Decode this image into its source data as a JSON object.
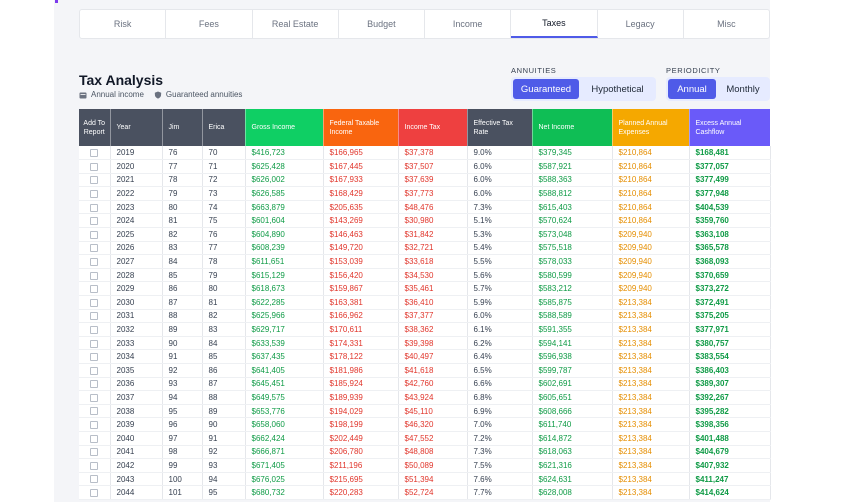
{
  "tabs": [
    {
      "label": "Risk",
      "active": false
    },
    {
      "label": "Fees",
      "active": false
    },
    {
      "label": "Real Estate",
      "active": false
    },
    {
      "label": "Budget",
      "active": false
    },
    {
      "label": "Income",
      "active": false
    },
    {
      "label": "Taxes",
      "active": true
    },
    {
      "label": "Legacy",
      "active": false
    },
    {
      "label": "Misc",
      "active": false
    }
  ],
  "header": {
    "title": "Tax Analysis",
    "tags": [
      {
        "icon": "calendar-icon",
        "label": "Annual income"
      },
      {
        "icon": "shield-icon",
        "label": "Guaranteed annuities"
      }
    ]
  },
  "annuities": {
    "label": "ANNUITIES",
    "options": [
      "Guaranteed",
      "Hypothetical"
    ],
    "selected": "Guaranteed"
  },
  "periodicity": {
    "label": "PERIODICITY",
    "options": [
      "Annual",
      "Monthly"
    ],
    "selected": "Annual"
  },
  "colors": {
    "accent": "#4f5be8",
    "header_dark": "#4a5160",
    "gross_income": "#0fcf64",
    "federal_taxable": "#f9650f",
    "income_tax": "#ee4040",
    "effective_rate": "#4a5160",
    "net_income": "#0fbe55",
    "planned_expenses": "#f5a800",
    "excess_cashflow": "#6a5af9"
  },
  "table": {
    "columns": [
      {
        "key": "add",
        "label": "Add To Report"
      },
      {
        "key": "year",
        "label": "Year"
      },
      {
        "key": "jim",
        "label": "Jim"
      },
      {
        "key": "erica",
        "label": "Erica"
      },
      {
        "key": "gross",
        "label": "Gross Income"
      },
      {
        "key": "fed",
        "label": "Federal Taxable Income"
      },
      {
        "key": "tax",
        "label": "Income Tax"
      },
      {
        "key": "rate",
        "label": "Effective Tax Rate"
      },
      {
        "key": "net",
        "label": "Net Income"
      },
      {
        "key": "exp",
        "label": "Planned Annual Expenses"
      },
      {
        "key": "excess",
        "label": "Excess Annual Cashflow"
      }
    ],
    "rows": [
      [
        "2019",
        "76",
        "70",
        "$416,723",
        "$166,965",
        "$37,378",
        "9.0%",
        "$379,345",
        "$210,864",
        "$168,481"
      ],
      [
        "2020",
        "77",
        "71",
        "$625,428",
        "$167,445",
        "$37,507",
        "6.0%",
        "$587,921",
        "$210,864",
        "$377,057"
      ],
      [
        "2021",
        "78",
        "72",
        "$626,002",
        "$167,933",
        "$37,639",
        "6.0%",
        "$588,363",
        "$210,864",
        "$377,499"
      ],
      [
        "2022",
        "79",
        "73",
        "$626,585",
        "$168,429",
        "$37,773",
        "6.0%",
        "$588,812",
        "$210,864",
        "$377,948"
      ],
      [
        "2023",
        "80",
        "74",
        "$663,879",
        "$205,635",
        "$48,476",
        "7.3%",
        "$615,403",
        "$210,864",
        "$404,539"
      ],
      [
        "2024",
        "81",
        "75",
        "$601,604",
        "$143,269",
        "$30,980",
        "5.1%",
        "$570,624",
        "$210,864",
        "$359,760"
      ],
      [
        "2025",
        "82",
        "76",
        "$604,890",
        "$146,463",
        "$31,842",
        "5.3%",
        "$573,048",
        "$209,940",
        "$363,108"
      ],
      [
        "2026",
        "83",
        "77",
        "$608,239",
        "$149,720",
        "$32,721",
        "5.4%",
        "$575,518",
        "$209,940",
        "$365,578"
      ],
      [
        "2027",
        "84",
        "78",
        "$611,651",
        "$153,039",
        "$33,618",
        "5.5%",
        "$578,033",
        "$209,940",
        "$368,093"
      ],
      [
        "2028",
        "85",
        "79",
        "$615,129",
        "$156,420",
        "$34,530",
        "5.6%",
        "$580,599",
        "$209,940",
        "$370,659"
      ],
      [
        "2029",
        "86",
        "80",
        "$618,673",
        "$159,867",
        "$35,461",
        "5.7%",
        "$583,212",
        "$209,940",
        "$373,272"
      ],
      [
        "2030",
        "87",
        "81",
        "$622,285",
        "$163,381",
        "$36,410",
        "5.9%",
        "$585,875",
        "$213,384",
        "$372,491"
      ],
      [
        "2031",
        "88",
        "82",
        "$625,966",
        "$166,962",
        "$37,377",
        "6.0%",
        "$588,589",
        "$213,384",
        "$375,205"
      ],
      [
        "2032",
        "89",
        "83",
        "$629,717",
        "$170,611",
        "$38,362",
        "6.1%",
        "$591,355",
        "$213,384",
        "$377,971"
      ],
      [
        "2033",
        "90",
        "84",
        "$633,539",
        "$174,331",
        "$39,398",
        "6.2%",
        "$594,141",
        "$213,384",
        "$380,757"
      ],
      [
        "2034",
        "91",
        "85",
        "$637,435",
        "$178,122",
        "$40,497",
        "6.4%",
        "$596,938",
        "$213,384",
        "$383,554"
      ],
      [
        "2035",
        "92",
        "86",
        "$641,405",
        "$181,986",
        "$41,618",
        "6.5%",
        "$599,787",
        "$213,384",
        "$386,403"
      ],
      [
        "2036",
        "93",
        "87",
        "$645,451",
        "$185,924",
        "$42,760",
        "6.6%",
        "$602,691",
        "$213,384",
        "$389,307"
      ],
      [
        "2037",
        "94",
        "88",
        "$649,575",
        "$189,939",
        "$43,924",
        "6.8%",
        "$605,651",
        "$213,384",
        "$392,267"
      ],
      [
        "2038",
        "95",
        "89",
        "$653,776",
        "$194,029",
        "$45,110",
        "6.9%",
        "$608,666",
        "$213,384",
        "$395,282"
      ],
      [
        "2039",
        "96",
        "90",
        "$658,060",
        "$198,199",
        "$46,320",
        "7.0%",
        "$611,740",
        "$213,384",
        "$398,356"
      ],
      [
        "2040",
        "97",
        "91",
        "$662,424",
        "$202,449",
        "$47,552",
        "7.2%",
        "$614,872",
        "$213,384",
        "$401,488"
      ],
      [
        "2041",
        "98",
        "92",
        "$666,871",
        "$206,780",
        "$48,808",
        "7.3%",
        "$618,063",
        "$213,384",
        "$404,679"
      ],
      [
        "2042",
        "99",
        "93",
        "$671,405",
        "$211,196",
        "$50,089",
        "7.5%",
        "$621,316",
        "$213,384",
        "$407,932"
      ],
      [
        "2043",
        "100",
        "94",
        "$676,025",
        "$215,695",
        "$51,394",
        "7.6%",
        "$624,631",
        "$213,384",
        "$411,247"
      ],
      [
        "2044",
        "101",
        "95",
        "$680,732",
        "$220,283",
        "$52,724",
        "7.7%",
        "$628,008",
        "$213,384",
        "$414,624"
      ]
    ]
  }
}
